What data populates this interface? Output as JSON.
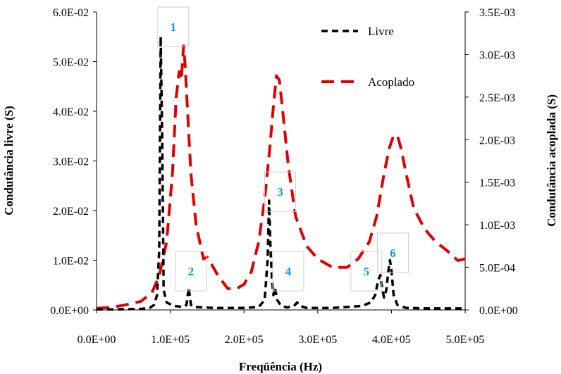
{
  "chart_data": {
    "type": "line",
    "title": "",
    "xlabel": "Freqüência (Hz)",
    "ylabel_left": "Condutância livre (S)",
    "ylabel_right": "Condutância acoplada (S)",
    "xlim": [
      0,
      500000
    ],
    "ylim_left": [
      0,
      0.06
    ],
    "ylim_right": [
      0,
      0.0035
    ],
    "x_ticks": [
      "0.0E+00",
      "1.0E+05",
      "2.0E+05",
      "3.0E+05",
      "4.0E+05",
      "5.0E+05"
    ],
    "y_left_ticks": [
      "0.0E+00",
      "1.0E-02",
      "2.0E-02",
      "3.0E-02",
      "4.0E-02",
      "5.0E-02",
      "6.0E-02"
    ],
    "y_right_ticks": [
      "0.0E+00",
      "5.0E-04",
      "1.0E-03",
      "1.5E-03",
      "2.0E-03",
      "2.5E-03",
      "3.0E-03",
      "3.5E-03"
    ],
    "grid": false,
    "legend_position": "top-right",
    "series": [
      {
        "name": "Livre",
        "axis": "left",
        "color": "#000000",
        "x": [
          0,
          20000,
          40000,
          60000,
          72000,
          78000,
          82000,
          85000,
          87000,
          89000,
          91000,
          95000,
          105000,
          118000,
          122000,
          125000,
          128000,
          133000,
          160000,
          200000,
          220000,
          228000,
          232000,
          234000,
          236000,
          238000,
          240000,
          242000,
          245000,
          250000,
          258000,
          268000,
          272000,
          276000,
          285000,
          320000,
          360000,
          372000,
          378000,
          382000,
          385000,
          388000,
          390000,
          393000,
          396000,
          398000,
          400000,
          403000,
          408000,
          420000,
          450000,
          500000
        ],
        "y": [
          0.0001,
          0.0001,
          0.00015,
          0.0002,
          0.0004,
          0.001,
          0.003,
          0.012,
          0.055,
          0.035,
          0.004,
          0.0015,
          0.0008,
          0.0006,
          0.001,
          0.0045,
          0.001,
          0.0006,
          0.0004,
          0.0004,
          0.0006,
          0.002,
          0.01,
          0.022,
          0.012,
          0.006,
          0.003,
          0.0045,
          0.002,
          0.0009,
          0.0005,
          0.0008,
          0.0015,
          0.0008,
          0.0004,
          0.0004,
          0.0008,
          0.0015,
          0.003,
          0.006,
          0.007,
          0.004,
          0.0025,
          0.004,
          0.008,
          0.01,
          0.008,
          0.003,
          0.001,
          0.0004,
          0.0003,
          0.0003
        ]
      },
      {
        "name": "Acoplado",
        "axis": "right",
        "color": "#e00000",
        "x": [
          0,
          20000,
          40000,
          60000,
          75000,
          85000,
          95000,
          103000,
          108000,
          112000,
          115000,
          118000,
          120000,
          123000,
          128000,
          135000,
          145000,
          150000,
          155000,
          165000,
          178000,
          190000,
          200000,
          210000,
          220000,
          228000,
          235000,
          240000,
          244000,
          248000,
          253000,
          260000,
          270000,
          285000,
          300000,
          320000,
          340000,
          355000,
          370000,
          380000,
          390000,
          397000,
          403000,
          408000,
          413000,
          420000,
          430000,
          445000,
          460000,
          475000,
          490000,
          500000
        ],
        "y": [
          2e-05,
          3e-05,
          6e-05,
          0.0001,
          0.0002,
          0.0004,
          0.0008,
          0.0016,
          0.0025,
          0.0028,
          0.0027,
          0.0031,
          0.0029,
          0.0024,
          0.0016,
          0.001,
          0.0006,
          0.00062,
          0.00055,
          0.0004,
          0.00025,
          0.00025,
          0.0003,
          0.00045,
          0.0008,
          0.0013,
          0.0019,
          0.0024,
          0.00275,
          0.0027,
          0.0023,
          0.0017,
          0.0011,
          0.00075,
          0.0006,
          0.0005,
          0.0005,
          0.0006,
          0.0008,
          0.0011,
          0.0016,
          0.0019,
          0.00205,
          0.00205,
          0.0019,
          0.0016,
          0.0012,
          0.00095,
          0.0008,
          0.0007,
          0.00058,
          0.0006
        ]
      }
    ],
    "peak_labels": [
      {
        "text": "1",
        "x": 104000,
        "y": 0.057
      },
      {
        "text": "2",
        "x": 128000,
        "y": 0.0078
      },
      {
        "text": "3",
        "x": 249000,
        "y": 0.0238
      },
      {
        "text": "4",
        "x": 260000,
        "y": 0.0078
      },
      {
        "text": "5",
        "x": 366000,
        "y": 0.0078
      },
      {
        "text": "6",
        "x": 402000,
        "y": 0.0115
      }
    ],
    "peak_label_color": "#00a0e0"
  }
}
